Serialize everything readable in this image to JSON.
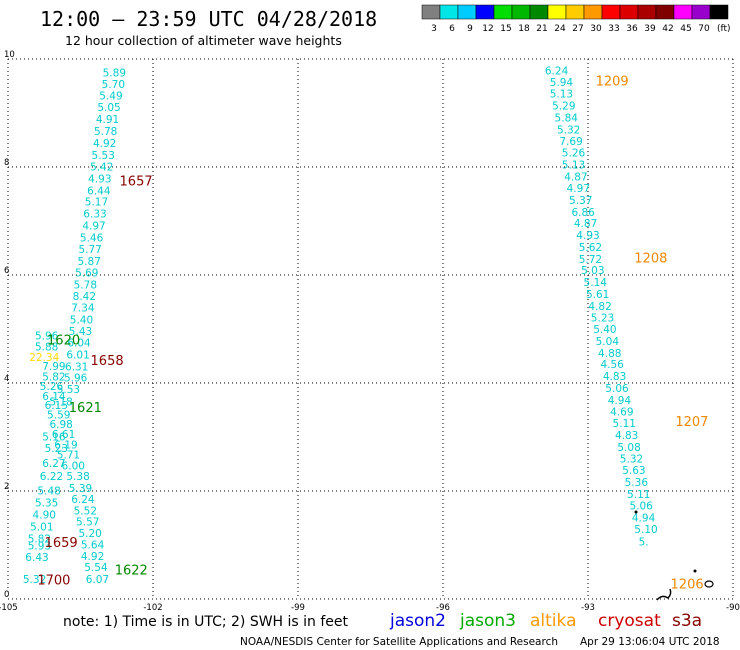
{
  "header": {
    "title": "12:00 – 23:59 UTC 04/28/2018",
    "subtitle": "12 hour collection of altimeter wave heights"
  },
  "colorbar": {
    "unit_label": "(ft)",
    "swatches": [
      {
        "color": "#808080",
        "label": "3"
      },
      {
        "color": "#00e5e5",
        "label": "6"
      },
      {
        "color": "#00ccff",
        "label": "9"
      },
      {
        "color": "#0000ff",
        "label": "12"
      },
      {
        "color": "#00dd00",
        "label": "15"
      },
      {
        "color": "#00b800",
        "label": "18"
      },
      {
        "color": "#008800",
        "label": "21"
      },
      {
        "color": "#ffff00",
        "label": "24"
      },
      {
        "color": "#ffcc00",
        "label": "27"
      },
      {
        "color": "#ff9900",
        "label": "30"
      },
      {
        "color": "#ff0000",
        "label": "33"
      },
      {
        "color": "#dd0000",
        "label": "36"
      },
      {
        "color": "#aa0000",
        "label": "39"
      },
      {
        "color": "#800000",
        "label": "42"
      },
      {
        "color": "#ff00ff",
        "label": "45"
      },
      {
        "color": "#9900cc",
        "label": "70"
      },
      {
        "color": "#000000",
        "label": ""
      }
    ]
  },
  "legend": {
    "note": "note:  1) Time is in UTC;  2) SWH is in feet",
    "satellites": [
      {
        "name": "jason2",
        "color": "#0000dd"
      },
      {
        "name": "jason3",
        "color": "#00aa00"
      },
      {
        "name": "altika",
        "color": "#ff9900"
      },
      {
        "name": "cryosat",
        "color": "#cc0000"
      },
      {
        "name": "s3a",
        "color": "#880000"
      }
    ]
  },
  "footer": {
    "credit": "NOAA/NESDIS Center for Satellite Applications and Research",
    "timestamp": "Apr 29 13:06:04 UTC 2018"
  },
  "chart_data": {
    "type": "scatter",
    "title": "12:00 – 23:59 UTC 04/28/2018",
    "xlabel": "",
    "ylabel": "",
    "xlim": [
      -105,
      -90
    ],
    "ylim": [
      0,
      10
    ],
    "x_ticks": [
      "-105",
      "-102",
      "-99",
      "-96",
      "-93",
      "-90"
    ],
    "y_ticks": [
      "0",
      "2",
      "4",
      "6",
      "8",
      "10"
    ],
    "grid": true,
    "value_color": "#00cccc",
    "series": [
      {
        "name": "track west (north segment)",
        "points": [
          {
            "lon": -102.8,
            "lat": 9.73,
            "v": "5.89"
          },
          {
            "lon": -102.82,
            "lat": 9.52,
            "v": "5.70"
          },
          {
            "lon": -102.87,
            "lat": 9.31,
            "v": "5.49"
          },
          {
            "lon": -102.91,
            "lat": 9.09,
            "v": "5.05"
          },
          {
            "lon": -102.94,
            "lat": 8.87,
            "v": "4.91"
          },
          {
            "lon": -102.98,
            "lat": 8.65,
            "v": "5.78"
          },
          {
            "lon": -103.0,
            "lat": 8.43,
            "v": "4.92"
          },
          {
            "lon": -103.03,
            "lat": 8.2,
            "v": "5.53"
          },
          {
            "lon": -103.06,
            "lat": 7.99,
            "v": "5.42"
          },
          {
            "lon": -103.1,
            "lat": 7.77,
            "v": "4.93"
          },
          {
            "lon": -103.12,
            "lat": 7.55,
            "v": "6.44"
          },
          {
            "lon": -103.17,
            "lat": 7.34,
            "v": "5.17"
          },
          {
            "lon": -103.2,
            "lat": 7.12,
            "v": "6.33"
          },
          {
            "lon": -103.22,
            "lat": 6.9,
            "v": "4.97"
          },
          {
            "lon": -103.27,
            "lat": 6.68,
            "v": "5.46"
          },
          {
            "lon": -103.3,
            "lat": 6.46,
            "v": "5.77"
          },
          {
            "lon": -103.32,
            "lat": 6.24,
            "v": "5.87"
          },
          {
            "lon": -103.37,
            "lat": 6.03,
            "v": "5.69"
          },
          {
            "lon": -103.4,
            "lat": 5.81,
            "v": "5.78"
          },
          {
            "lon": -103.42,
            "lat": 5.59,
            "v": "8.42"
          },
          {
            "lon": -103.45,
            "lat": 5.38,
            "v": "7.34"
          },
          {
            "lon": -103.48,
            "lat": 5.16,
            "v": "5.40"
          },
          {
            "lon": -103.5,
            "lat": 4.94,
            "v": "5.43"
          },
          {
            "lon": -103.53,
            "lat": 4.73,
            "v": "6.04"
          },
          {
            "lon": -103.55,
            "lat": 4.51,
            "v": "6.01"
          },
          {
            "lon": -103.58,
            "lat": 4.29,
            "v": "6.31"
          }
        ]
      },
      {
        "name": "track west (south segment)",
        "points": [
          {
            "lon": -104.2,
            "lat": 4.86,
            "v": "5.96"
          },
          {
            "lon": -104.2,
            "lat": 4.66,
            "v": "5.88"
          },
          {
            "lon": -104.25,
            "lat": 4.46,
            "v": "22.34",
            "color": "#ffdd00"
          },
          {
            "lon": -104.05,
            "lat": 4.3,
            "v": "7.99"
          },
          {
            "lon": -103.6,
            "lat": 4.08,
            "v": "5.96"
          },
          {
            "lon": -104.05,
            "lat": 4.1,
            "v": "5.82"
          },
          {
            "lon": -103.75,
            "lat": 3.87,
            "v": "5.53"
          },
          {
            "lon": -104.1,
            "lat": 3.93,
            "v": "5.26"
          },
          {
            "lon": -104.05,
            "lat": 3.74,
            "v": "6.14"
          },
          {
            "lon": -103.9,
            "lat": 3.64,
            "v": "5.18"
          },
          {
            "lon": -104.0,
            "lat": 3.57,
            "v": "6.15"
          },
          {
            "lon": -103.95,
            "lat": 3.4,
            "v": "5.59"
          },
          {
            "lon": -103.9,
            "lat": 3.22,
            "v": "6.98"
          },
          {
            "lon": -103.85,
            "lat": 3.04,
            "v": "6.61"
          },
          {
            "lon": -104.05,
            "lat": 2.99,
            "v": "5.16"
          },
          {
            "lon": -103.8,
            "lat": 2.84,
            "v": "6.19"
          },
          {
            "lon": -104.0,
            "lat": 2.78,
            "v": "5.23"
          },
          {
            "lon": -103.75,
            "lat": 2.66,
            "v": "5.71"
          },
          {
            "lon": -104.05,
            "lat": 2.5,
            "v": "6.27"
          },
          {
            "lon": -103.65,
            "lat": 2.45,
            "v": "6.00"
          },
          {
            "lon": -104.1,
            "lat": 2.26,
            "v": "6.22"
          },
          {
            "lon": -103.55,
            "lat": 2.26,
            "v": "5.38"
          },
          {
            "lon": -103.5,
            "lat": 2.04,
            "v": "5.39"
          },
          {
            "lon": -104.15,
            "lat": 1.99,
            "v": "5.48"
          },
          {
            "lon": -103.45,
            "lat": 1.83,
            "v": "6.24"
          },
          {
            "lon": -104.2,
            "lat": 1.77,
            "v": "5.35"
          },
          {
            "lon": -103.4,
            "lat": 1.62,
            "v": "5.52"
          },
          {
            "lon": -104.25,
            "lat": 1.55,
            "v": "4.90"
          },
          {
            "lon": -103.35,
            "lat": 1.42,
            "v": "5.57"
          },
          {
            "lon": -104.3,
            "lat": 1.32,
            "v": "5.01"
          },
          {
            "lon": -103.3,
            "lat": 1.2,
            "v": "5.20"
          },
          {
            "lon": -104.35,
            "lat": 1.1,
            "v": "5.82"
          },
          {
            "lon": -103.25,
            "lat": 0.99,
            "v": "5.64"
          },
          {
            "lon": -104.35,
            "lat": 0.97,
            "v": "5.93"
          },
          {
            "lon": -103.25,
            "lat": 0.78,
            "v": "4.92"
          },
          {
            "lon": -104.4,
            "lat": 0.76,
            "v": "6.43"
          },
          {
            "lon": -103.18,
            "lat": 0.57,
            "v": "5.54"
          },
          {
            "lon": -103.15,
            "lat": 0.35,
            "v": "6.07"
          },
          {
            "lon": -104.45,
            "lat": 0.35,
            "v": "5.32"
          }
        ]
      },
      {
        "name": "track east",
        "points": [
          {
            "lon": -93.65,
            "lat": 9.77,
            "v": "6.24"
          },
          {
            "lon": -93.55,
            "lat": 9.56,
            "v": "5.94"
          },
          {
            "lon": -93.55,
            "lat": 9.34,
            "v": "5.13"
          },
          {
            "lon": -93.5,
            "lat": 9.12,
            "v": "5.29"
          },
          {
            "lon": -93.45,
            "lat": 8.9,
            "v": "5.84"
          },
          {
            "lon": -93.4,
            "lat": 8.68,
            "v": "5.32"
          },
          {
            "lon": -93.35,
            "lat": 8.46,
            "v": "7.69"
          },
          {
            "lon": -93.3,
            "lat": 8.25,
            "v": "5.26"
          },
          {
            "lon": -93.3,
            "lat": 8.03,
            "v": "5.13"
          },
          {
            "lon": -93.25,
            "lat": 7.81,
            "v": "4.87"
          },
          {
            "lon": -93.2,
            "lat": 7.59,
            "v": "4.97"
          },
          {
            "lon": -93.15,
            "lat": 7.37,
            "v": "5.37"
          },
          {
            "lon": -93.1,
            "lat": 7.15,
            "v": "6.86"
          },
          {
            "lon": -93.05,
            "lat": 6.94,
            "v": "4.87"
          },
          {
            "lon": -93.0,
            "lat": 6.72,
            "v": "4.93"
          },
          {
            "lon": -92.95,
            "lat": 6.5,
            "v": "5.62"
          },
          {
            "lon": -92.95,
            "lat": 6.28,
            "v": "5.72"
          },
          {
            "lon": -92.9,
            "lat": 6.07,
            "v": "5.03"
          },
          {
            "lon": -92.85,
            "lat": 5.85,
            "v": "5.14"
          },
          {
            "lon": -92.8,
            "lat": 5.63,
            "v": "5.61"
          },
          {
            "lon": -92.75,
            "lat": 5.41,
            "v": "4.82"
          },
          {
            "lon": -92.7,
            "lat": 5.19,
            "v": "5.23"
          },
          {
            "lon": -92.65,
            "lat": 4.98,
            "v": "5.40"
          },
          {
            "lon": -92.6,
            "lat": 4.76,
            "v": "5.04"
          },
          {
            "lon": -92.55,
            "lat": 4.54,
            "v": "4.88"
          },
          {
            "lon": -92.5,
            "lat": 4.33,
            "v": "4.56"
          },
          {
            "lon": -92.45,
            "lat": 4.11,
            "v": "4.83"
          },
          {
            "lon": -92.4,
            "lat": 3.89,
            "v": "5.06"
          },
          {
            "lon": -92.35,
            "lat": 3.67,
            "v": "4.94"
          },
          {
            "lon": -92.3,
            "lat": 3.45,
            "v": "4.69"
          },
          {
            "lon": -92.25,
            "lat": 3.24,
            "v": "5.11"
          },
          {
            "lon": -92.2,
            "lat": 3.02,
            "v": "4.83"
          },
          {
            "lon": -92.15,
            "lat": 2.8,
            "v": "5.08"
          },
          {
            "lon": -92.1,
            "lat": 2.58,
            "v": "5.32"
          },
          {
            "lon": -92.05,
            "lat": 2.37,
            "v": "5.63"
          },
          {
            "lon": -92.0,
            "lat": 2.15,
            "v": "5.36"
          },
          {
            "lon": -91.95,
            "lat": 1.93,
            "v": "5.11"
          },
          {
            "lon": -91.9,
            "lat": 1.71,
            "v": "5.06"
          },
          {
            "lon": -91.85,
            "lat": 1.49,
            "v": "4.94"
          },
          {
            "lon": -91.8,
            "lat": 1.28,
            "v": "5.10"
          },
          {
            "lon": -91.85,
            "lat": 1.05,
            "v": "5."
          }
        ]
      }
    ],
    "time_labels": [
      {
        "lon": -102.35,
        "lat": 7.72,
        "text": "1657",
        "color": "#880000"
      },
      {
        "lon": -103.85,
        "lat": 4.78,
        "text": "1620",
        "color": "#008800"
      },
      {
        "lon": -102.95,
        "lat": 4.4,
        "text": "1658",
        "color": "#880000"
      },
      {
        "lon": -103.4,
        "lat": 3.53,
        "text": "1621",
        "color": "#008800"
      },
      {
        "lon": -103.9,
        "lat": 1.03,
        "text": "1659",
        "color": "#880000"
      },
      {
        "lon": -102.45,
        "lat": 0.52,
        "text": "1622",
        "color": "#008800"
      },
      {
        "lon": -104.05,
        "lat": 0.33,
        "text": "1700",
        "color": "#880000"
      },
      {
        "lon": -92.5,
        "lat": 9.57,
        "text": "1209",
        "color": "#ee8800"
      },
      {
        "lon": -91.7,
        "lat": 6.3,
        "text": "1208",
        "color": "#ee8800"
      },
      {
        "lon": -90.85,
        "lat": 3.27,
        "text": "1207",
        "color": "#ee8800"
      },
      {
        "lon": -90.95,
        "lat": 0.26,
        "text": "1206",
        "color": "#ee8800"
      }
    ]
  }
}
